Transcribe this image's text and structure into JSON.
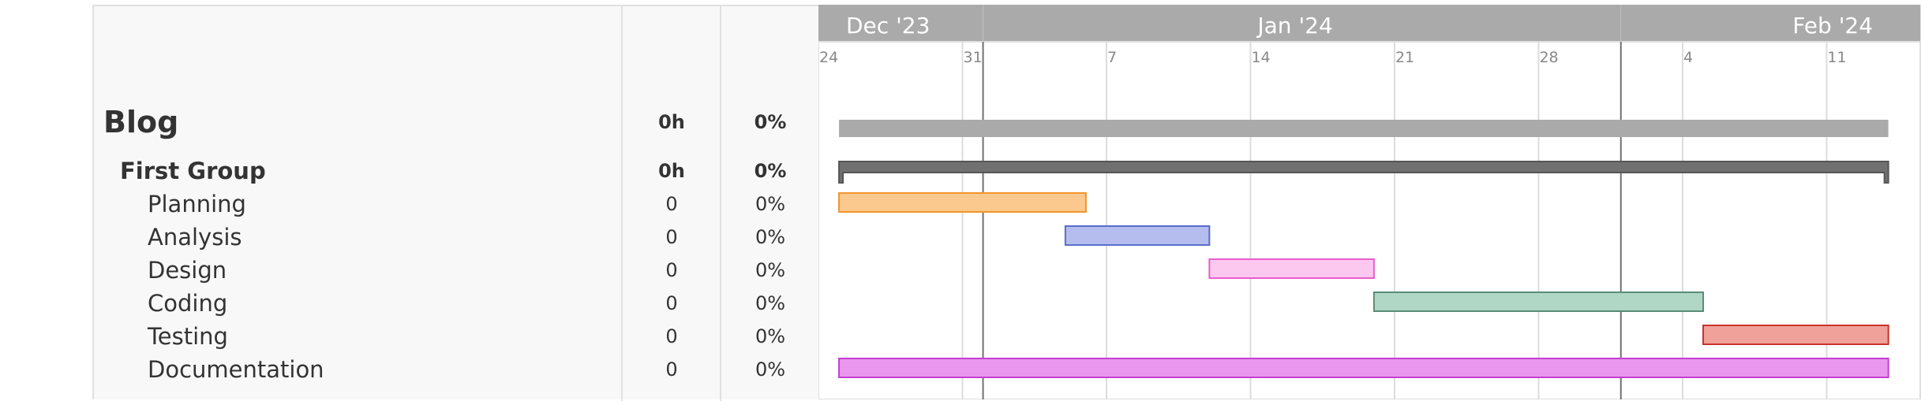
{
  "chart_data": {
    "type": "gantt",
    "timeline": {
      "months": [
        {
          "label": "Dec '23",
          "date": "2023-12-24"
        },
        {
          "label": "Jan '24",
          "date": "2024-01-13"
        },
        {
          "label": "Feb '24",
          "date": "2024-02-08"
        }
      ],
      "week_ticks": [
        {
          "label": "24",
          "date": "2023-12-24"
        },
        {
          "label": "31",
          "date": "2023-12-31"
        },
        {
          "label": "7",
          "date": "2024-01-07"
        },
        {
          "label": "14",
          "date": "2024-01-14"
        },
        {
          "label": "21",
          "date": "2024-01-21"
        },
        {
          "label": "28",
          "date": "2024-01-28"
        },
        {
          "label": "4",
          "date": "2024-02-04"
        },
        {
          "label": "11",
          "date": "2024-02-11"
        }
      ],
      "month_boundaries": [
        "2024-01-01",
        "2024-02-01"
      ],
      "range": [
        "2023-12-24",
        "2024-02-15"
      ]
    },
    "tasks": [
      {
        "name": "Blog",
        "level": "project",
        "hours": "0h",
        "progress": "0%",
        "start": "2023-12-25",
        "end": "2024-02-14",
        "color": "#aaaaaa"
      },
      {
        "name": "First Group",
        "level": "group",
        "hours": "0h",
        "progress": "0%",
        "start": "2023-12-25",
        "end": "2024-02-14",
        "color": "#707070"
      },
      {
        "name": "Planning",
        "level": "task",
        "hours": "0",
        "progress": "0%",
        "start": "2023-12-25",
        "end": "2024-01-06",
        "color": "#fbc88e",
        "border": "#f0962e"
      },
      {
        "name": "Analysis",
        "level": "task",
        "hours": "0",
        "progress": "0%",
        "start": "2024-01-05",
        "end": "2024-01-12",
        "color": "#b4bdee",
        "border": "#5a6dc8"
      },
      {
        "name": "Design",
        "level": "task",
        "hours": "0",
        "progress": "0%",
        "start": "2024-01-12",
        "end": "2024-01-20",
        "color": "#fdc8ef",
        "border": "#e85fcc"
      },
      {
        "name": "Coding",
        "level": "task",
        "hours": "0",
        "progress": "0%",
        "start": "2024-01-20",
        "end": "2024-02-05",
        "color": "#b0d6c6",
        "border": "#5b8c75"
      },
      {
        "name": "Testing",
        "level": "task",
        "hours": "0",
        "progress": "0%",
        "start": "2024-02-05",
        "end": "2024-02-14",
        "color": "#f0a29a",
        "border": "#c8332a"
      },
      {
        "name": "Documentation",
        "level": "task",
        "hours": "0",
        "progress": "0%",
        "start": "2023-12-25",
        "end": "2024-02-14",
        "color": "#e896ee",
        "border": "#c43fd0"
      }
    ]
  }
}
